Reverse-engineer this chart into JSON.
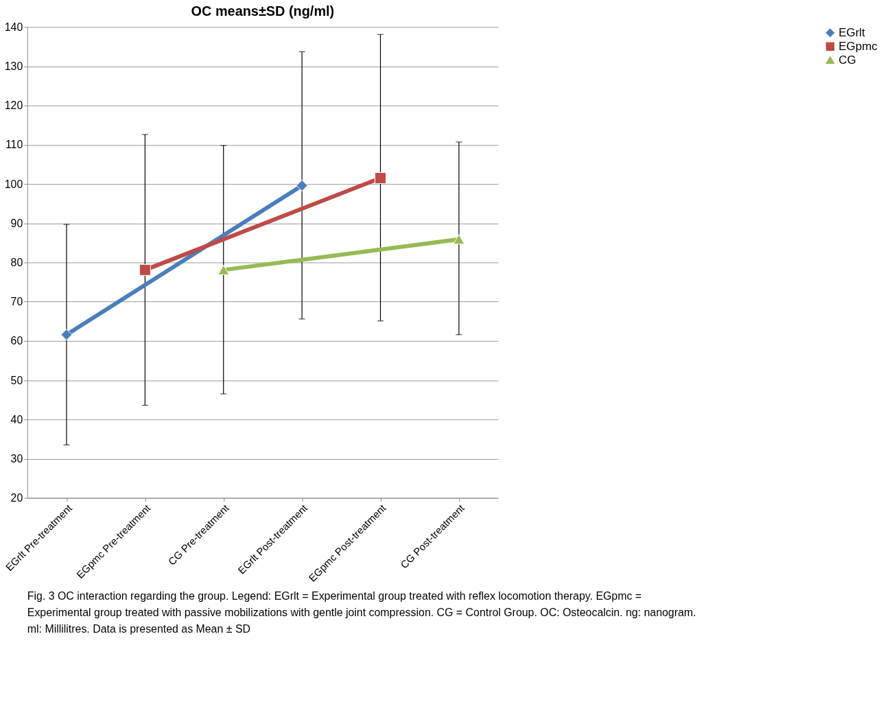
{
  "chart_data": {
    "type": "line",
    "title": "OC means±SD (ng/ml)",
    "categories": [
      "EGrlt Pre-treatment",
      "EGpmc Pre-treatment",
      "CG Pre-treatment",
      "EGrlt Post-treatment",
      "EGpmc Post-treatment",
      "CG Post-treatment"
    ],
    "series": [
      {
        "name": "EGrlt",
        "color": "#4a7ebb",
        "marker": "diamond",
        "values": [
          61.6,
          null,
          null,
          99.6,
          null,
          null
        ],
        "errors": [
          [
            33.5,
            89.7
          ],
          null,
          null,
          [
            65.6,
            133.7
          ],
          null,
          null
        ]
      },
      {
        "name": "EGpmc",
        "color": "#be4b48",
        "marker": "square",
        "values": [
          null,
          78.1,
          null,
          null,
          101.5,
          null
        ],
        "errors": [
          null,
          [
            43.6,
            112.6
          ],
          null,
          null,
          [
            65.1,
            138.1
          ],
          null
        ]
      },
      {
        "name": "CG",
        "color": "#98b954",
        "marker": "triangle",
        "values": [
          null,
          null,
          78.1,
          null,
          null,
          85.9
        ],
        "errors": [
          null,
          null,
          [
            46.5,
            109.8
          ],
          null,
          null,
          [
            61.6,
            110.7
          ]
        ]
      }
    ],
    "ylim": [
      20,
      140
    ],
    "yticks": [
      20,
      30,
      40,
      50,
      60,
      70,
      80,
      90,
      100,
      110,
      120,
      130,
      140
    ],
    "grid": "y",
    "legend": "right",
    "annotations": [
      "Fig. 3 OC interaction regarding the group. Legend: EGrlt = Experimental group treated with reflex locomotion therapy. EGpmc = Experimental group treated with passive mobilizations with gentle joint compression. CG = Control Group. OC: Osteocalcin. ng: nanogram. ml: Millilitres. Data is presented as Mean ± SD"
    ]
  }
}
